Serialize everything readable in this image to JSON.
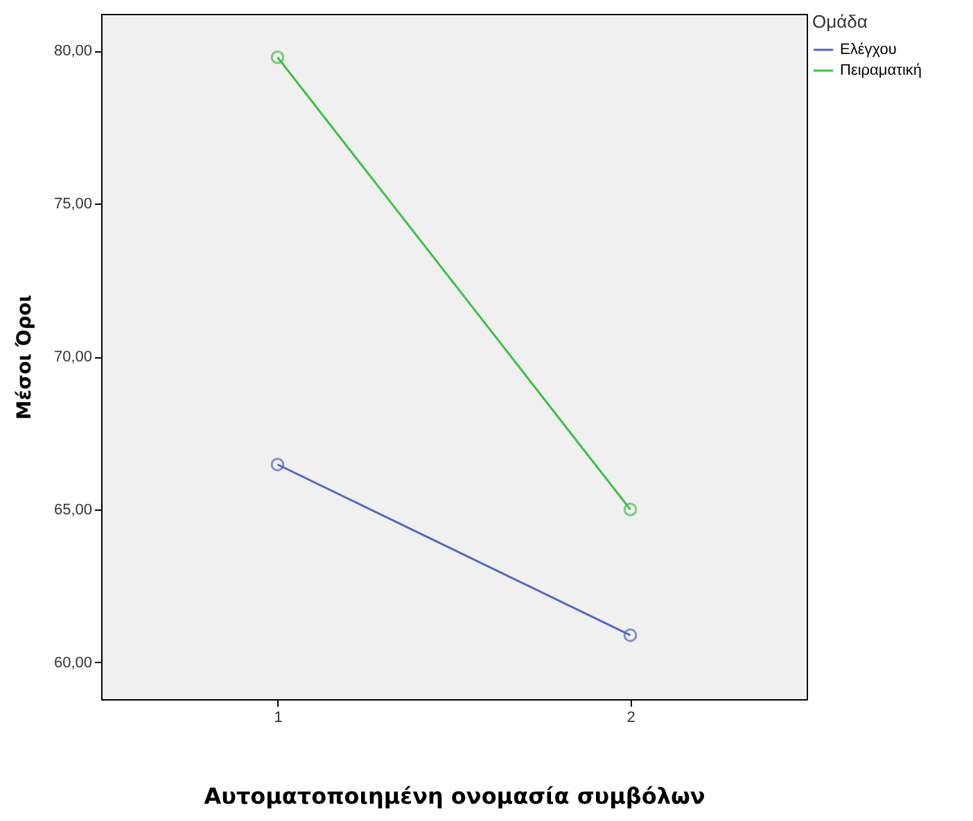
{
  "chart_data": {
    "type": "line",
    "xlabel": "Αυτοματοποιημένη ονομασία συμβόλων",
    "ylabel": "Μέσοι Όροι",
    "legend_title": "Ομάδα",
    "categories": [
      "1",
      "2"
    ],
    "series": [
      {
        "name": "Ελέγχου",
        "color": "#5366c0",
        "values": [
          66.47,
          60.89
        ]
      },
      {
        "name": "Πειραματική",
        "color": "#3fbf4a",
        "values": [
          79.78,
          65.0
        ]
      }
    ],
    "ylim": [
      58.8,
      81.2
    ],
    "yticks": [
      {
        "value": 60,
        "label": "60,00"
      },
      {
        "value": 65,
        "label": "65,00"
      },
      {
        "value": 70,
        "label": "70,00"
      },
      {
        "value": 75,
        "label": "75,00"
      },
      {
        "value": 80,
        "label": "80,00"
      }
    ],
    "grid": false,
    "legend": "top right",
    "marker": "circle",
    "line_style": "solid"
  }
}
